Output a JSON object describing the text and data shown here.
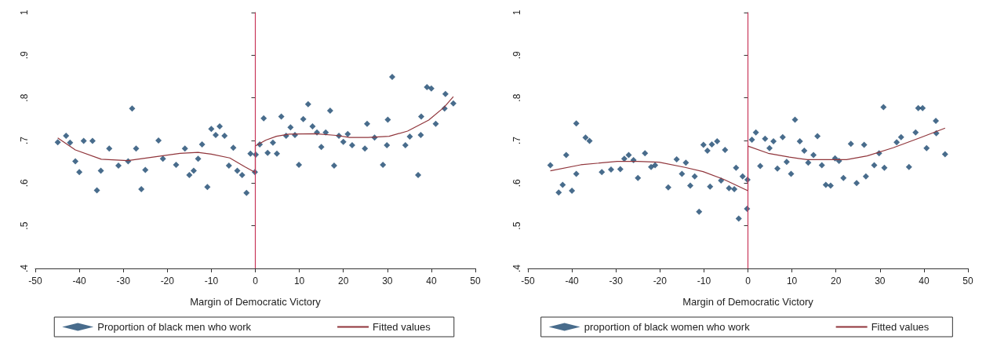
{
  "chart_data": [
    {
      "type": "scatter",
      "xlabel": "Margin of Democratic Victory",
      "xlim": [
        -50,
        50
      ],
      "xticks": [
        -50,
        -40,
        -30,
        -20,
        -10,
        0,
        10,
        20,
        30,
        40,
        50
      ],
      "ylim": [
        0.4,
        1
      ],
      "yticks": [
        {
          "value": 0.4,
          "label": ".4"
        },
        {
          "value": 0.5,
          "label": ".5"
        },
        {
          "value": 0.6,
          "label": ".6"
        },
        {
          "value": 0.7,
          "label": ".7"
        },
        {
          "value": 0.8,
          "label": ".8"
        },
        {
          "value": 0.9,
          "label": ".9"
        },
        1
      ],
      "grid": false,
      "legend": "bottom",
      "ref_lines": [
        {
          "axis": "x",
          "value": 0,
          "color": "#c8385a"
        }
      ],
      "series": [
        {
          "name": "Proportion of black men who work",
          "type": "scatter",
          "marker": "diamond",
          "color": "#1a476f",
          "x": [
            -44.9,
            -43,
            -42.1,
            -40.9,
            -40,
            -39,
            -37,
            -36,
            -35.1,
            -33.2,
            -31.1,
            -28.9,
            -28,
            -27.1,
            -25.9,
            -25,
            -22,
            -21,
            -18,
            -16,
            -15,
            -14,
            -13,
            -12.1,
            -10.9,
            -10,
            -9,
            -8.1,
            -7,
            -6,
            -5,
            -4.1,
            -3,
            -2,
            -1.1,
            -0.1,
            0.1,
            1,
            1.9,
            2.8,
            4,
            4.9,
            5.9,
            7,
            8,
            9,
            9.9,
            10.9,
            12,
            13,
            14,
            15,
            16,
            17,
            17.9,
            19,
            20,
            21,
            22,
            24.9,
            25.4,
            27.1,
            29,
            29.9,
            30.1,
            31.1,
            34.1,
            35.1,
            37,
            37.6,
            37.7,
            39,
            40,
            41,
            43,
            43.2,
            45
          ],
          "values": [
            0.696,
            0.711,
            0.695,
            0.651,
            0.626,
            0.699,
            0.699,
            0.583,
            0.629,
            0.681,
            0.641,
            0.651,
            0.775,
            0.681,
            0.586,
            0.631,
            0.7,
            0.657,
            0.643,
            0.681,
            0.619,
            0.629,
            0.657,
            0.691,
            0.591,
            0.727,
            0.713,
            0.733,
            0.711,
            0.641,
            0.683,
            0.629,
            0.619,
            0.577,
            0.669,
            0.626,
            0.667,
            0.691,
            0.752,
            0.671,
            0.695,
            0.669,
            0.756,
            0.711,
            0.731,
            0.713,
            0.643,
            0.75,
            0.785,
            0.733,
            0.719,
            0.685,
            0.719,
            0.77,
            0.641,
            0.711,
            0.697,
            0.715,
            0.689,
            0.681,
            0.739,
            0.707,
            0.643,
            0.689,
            0.749,
            0.849,
            0.689,
            0.709,
            0.619,
            0.713,
            0.756,
            0.825,
            0.822,
            0.739,
            0.775,
            0.809,
            0.787
          ]
        },
        {
          "name": "Fitted values",
          "type": "line",
          "marker": "none",
          "color": "#90353b",
          "x": [
            -44.9,
            -40.9,
            -35,
            -29,
            -21.3,
            -17.1,
            -13,
            -10,
            -5.8,
            -2.3,
            0,
            0,
            2.4,
            4.8,
            7.7,
            13.6,
            18.4,
            21.4,
            25.6,
            30.4,
            34.6,
            39.4,
            42.9,
            45
          ],
          "values": [
            0.706,
            0.678,
            0.656,
            0.653,
            0.664,
            0.67,
            0.672,
            0.668,
            0.659,
            0.638,
            0.625,
            0.687,
            0.701,
            0.71,
            0.715,
            0.716,
            0.712,
            0.707,
            0.707,
            0.71,
            0.722,
            0.748,
            0.778,
            0.803
          ]
        }
      ]
    },
    {
      "type": "scatter",
      "xlabel": "Margin of Democratic Victory",
      "xlim": [
        -50,
        50
      ],
      "xticks": [
        -50,
        -40,
        -30,
        -20,
        -10,
        0,
        10,
        20,
        30,
        40,
        50
      ],
      "ylim": [
        0.4,
        1
      ],
      "yticks": [
        {
          "value": 0.4,
          "label": ".4"
        },
        {
          "value": 0.5,
          "label": ".5"
        },
        {
          "value": 0.6,
          "label": ".6"
        },
        {
          "value": 0.7,
          "label": ".7"
        },
        {
          "value": 0.8,
          "label": ".8"
        },
        {
          "value": 0.9,
          "label": ".9"
        },
        1
      ],
      "grid": false,
      "legend": "bottom",
      "ref_lines": [
        {
          "axis": "x",
          "value": 0,
          "color": "#c8385a"
        }
      ],
      "series": [
        {
          "name": "proportion of black women who work",
          "type": "scatter",
          "marker": "diamond",
          "color": "#1a476f",
          "x": [
            -44.9,
            -43,
            -42.1,
            -41.3,
            -40,
            -39,
            -39,
            -36.9,
            -36,
            -33.2,
            -31.1,
            -29,
            -28.1,
            -27.1,
            -26,
            -25,
            -23.4,
            -22,
            -21.1,
            -18.1,
            -16.2,
            -15,
            -14.1,
            -13.1,
            -12.1,
            -11.1,
            -10.1,
            -9.2,
            -8.6,
            -8.2,
            -7,
            -6.1,
            -5.2,
            -4.3,
            -3.1,
            -2.7,
            -2.1,
            -1.2,
            -0.2,
            -0.1,
            0.9,
            1.8,
            2.8,
            3.9,
            4.9,
            5.8,
            6.7,
            7.9,
            8.8,
            9.8,
            10.7,
            11.8,
            12.8,
            13.7,
            14.9,
            15.8,
            16.8,
            17.7,
            18.8,
            19.8,
            20.7,
            21.7,
            23.4,
            24.7,
            26.4,
            26.8,
            28.7,
            29.8,
            30.8,
            31,
            33.8,
            34.8,
            36.6,
            38.1,
            38.7,
            39.7,
            40.6,
            42.7,
            42.8,
            44.8
          ],
          "values": [
            0.642,
            0.578,
            0.596,
            0.666,
            0.582,
            0.622,
            0.74,
            0.707,
            0.699,
            0.626,
            0.632,
            0.633,
            0.657,
            0.666,
            0.654,
            0.612,
            0.67,
            0.638,
            0.642,
            0.59,
            0.656,
            0.622,
            0.648,
            0.594,
            0.616,
            0.533,
            0.69,
            0.676,
            0.592,
            0.691,
            0.698,
            0.606,
            0.678,
            0.588,
            0.586,
            0.636,
            0.517,
            0.616,
            0.54,
            0.608,
            0.702,
            0.719,
            0.64,
            0.704,
            0.682,
            0.698,
            0.634,
            0.708,
            0.65,
            0.622,
            0.749,
            0.698,
            0.676,
            0.648,
            0.666,
            0.71,
            0.642,
            0.596,
            0.594,
            0.658,
            0.652,
            0.612,
            0.692,
            0.6,
            0.69,
            0.616,
            0.642,
            0.67,
            0.778,
            0.636,
            0.696,
            0.708,
            0.638,
            0.719,
            0.776,
            0.776,
            0.682,
            0.746,
            0.717,
            0.668
          ]
        },
        {
          "name": "Fitted values",
          "type": "line",
          "marker": "none",
          "color": "#90353b",
          "x": [
            -44.9,
            -38,
            -29.7,
            -25,
            -20.2,
            -14.3,
            -10.2,
            -5.5,
            -0.2,
            0,
            0,
            4.6,
            9.4,
            13.5,
            18.2,
            22.4,
            27.1,
            33,
            39,
            44.8
          ],
          "values": [
            0.629,
            0.643,
            0.651,
            0.651,
            0.649,
            0.637,
            0.627,
            0.609,
            0.583,
            0.583,
            0.687,
            0.67,
            0.661,
            0.655,
            0.655,
            0.655,
            0.664,
            0.683,
            0.706,
            0.729
          ]
        }
      ]
    }
  ]
}
